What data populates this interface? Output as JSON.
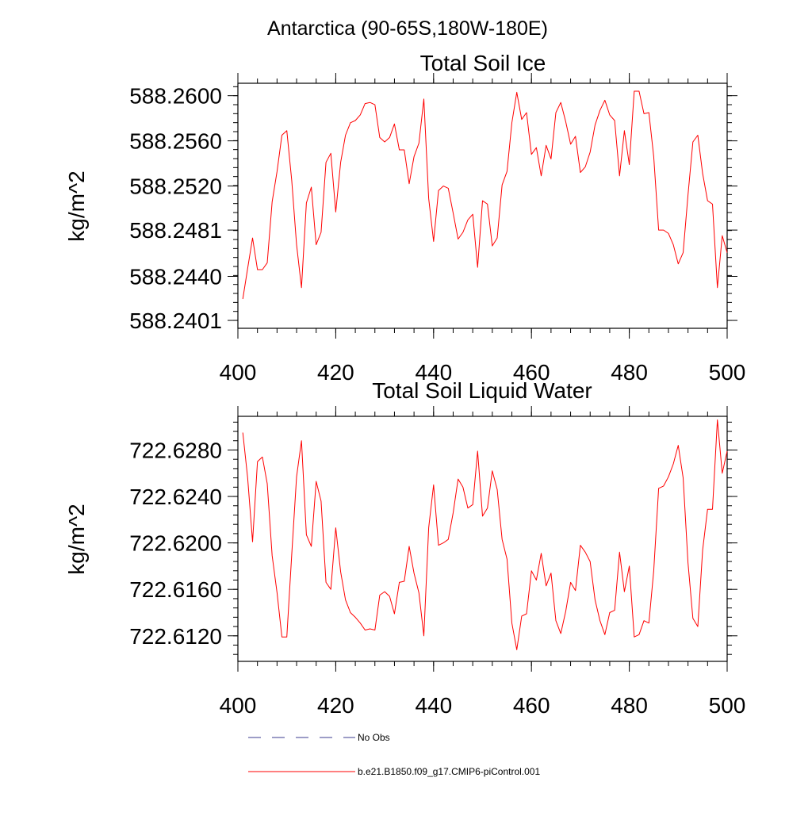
{
  "header": {
    "region_title": "Antarctica (90-65S,180W-180E)"
  },
  "legend": {
    "obs_label": "No Obs",
    "model_label": "b.e21.B1850.f09_g17.CMIP6-piControl.001",
    "obs_color": "#3b3b8f",
    "model_color": "#ff0000"
  },
  "chart_data": [
    {
      "type": "line",
      "title": "Total Soil Ice",
      "xlabel": "",
      "ylabel": "kg/m^2",
      "xlim": [
        400,
        500
      ],
      "ylim": [
        588.2394,
        588.2611
      ],
      "xticks": [
        400,
        420,
        440,
        460,
        480,
        500
      ],
      "xtick_labels": [
        "400",
        "420",
        "440",
        "460",
        "480",
        "500"
      ],
      "yticks": [
        588.2401,
        588.244,
        588.2481,
        588.252,
        588.256,
        588.26
      ],
      "ytick_labels": [
        "588.2401",
        "588.2440",
        "588.2481",
        "588.2520",
        "588.2560",
        "588.2600"
      ],
      "grid": false,
      "series": [
        {
          "name": "b.e21.B1850.f09_g17.CMIP6-piControl.001",
          "color": "#ff0000",
          "x": [
            401,
            402,
            403,
            404,
            405,
            406,
            407,
            408,
            409,
            410,
            411,
            412,
            413,
            414,
            415,
            416,
            417,
            418,
            419,
            420,
            421,
            422,
            423,
            424,
            425,
            426,
            427,
            428,
            429,
            430,
            431,
            432,
            433,
            434,
            435,
            436,
            437,
            438,
            439,
            440,
            441,
            442,
            443,
            444,
            445,
            446,
            447,
            448,
            449,
            450,
            451,
            452,
            453,
            454,
            455,
            456,
            457,
            458,
            459,
            460,
            461,
            462,
            463,
            464,
            465,
            466,
            467,
            468,
            469,
            470,
            471,
            472,
            473,
            474,
            475,
            476,
            477,
            478,
            479,
            480,
            481,
            482,
            483,
            484,
            485,
            486,
            487,
            488,
            489,
            490,
            491,
            492,
            493,
            494,
            495,
            496,
            497,
            498,
            499,
            500
          ],
          "values": [
            588.242,
            588.2447,
            588.2474,
            588.2446,
            588.2446,
            588.2452,
            588.2506,
            588.2533,
            588.2565,
            588.2569,
            588.2525,
            588.2468,
            588.243,
            588.2505,
            588.2519,
            588.2468,
            588.2479,
            588.2541,
            588.2549,
            588.2497,
            588.2541,
            588.2565,
            588.2576,
            588.2578,
            588.2583,
            588.2593,
            588.2594,
            588.2592,
            588.2563,
            588.2559,
            588.2563,
            588.2575,
            588.2552,
            588.2552,
            588.2522,
            588.2546,
            588.2558,
            588.2597,
            588.2509,
            588.2471,
            588.2516,
            588.252,
            588.2518,
            588.2496,
            588.2473,
            588.2479,
            588.249,
            588.2495,
            588.2448,
            588.2507,
            588.2504,
            588.2467,
            588.2474,
            588.2521,
            588.2533,
            588.2576,
            588.2603,
            588.2579,
            588.2585,
            588.2548,
            588.2554,
            588.2529,
            588.2556,
            588.2544,
            588.2585,
            588.2594,
            588.2577,
            588.2557,
            588.2564,
            588.2532,
            588.2537,
            588.255,
            588.2574,
            588.2587,
            588.2596,
            588.2583,
            588.2578,
            588.2529,
            588.2569,
            588.2539,
            588.2604,
            588.2604,
            588.2584,
            588.2585,
            588.2546,
            588.2481,
            588.2481,
            588.2478,
            588.2468,
            588.2451,
            588.2461,
            588.2512,
            588.2559,
            588.2565,
            588.2531,
            588.2507,
            588.2504,
            588.243,
            588.2476,
            588.2461
          ]
        }
      ]
    },
    {
      "type": "line",
      "title": "Total Soil Liquid Water",
      "xlabel": "",
      "ylabel": "kg/m^2",
      "xlim": [
        400,
        500
      ],
      "ylim": [
        722.6098,
        722.6309
      ],
      "xticks": [
        400,
        420,
        440,
        460,
        480,
        500
      ],
      "xtick_labels": [
        "400",
        "420",
        "440",
        "460",
        "480",
        "500"
      ],
      "yticks": [
        722.612,
        722.616,
        722.62,
        722.624,
        722.628
      ],
      "ytick_labels": [
        "722.6120",
        "722.6160",
        "722.6200",
        "722.6240",
        "722.6280"
      ],
      "grid": false,
      "series": [
        {
          "name": "b.e21.B1850.f09_g17.CMIP6-piControl.001",
          "color": "#ff0000",
          "x": [
            401,
            402,
            403,
            404,
            405,
            406,
            407,
            408,
            409,
            410,
            411,
            412,
            413,
            414,
            415,
            416,
            417,
            418,
            419,
            420,
            421,
            422,
            423,
            424,
            425,
            426,
            427,
            428,
            429,
            430,
            431,
            432,
            433,
            434,
            435,
            436,
            437,
            438,
            439,
            440,
            441,
            442,
            443,
            444,
            445,
            446,
            447,
            448,
            449,
            450,
            451,
            452,
            453,
            454,
            455,
            456,
            457,
            458,
            459,
            460,
            461,
            462,
            463,
            464,
            465,
            466,
            467,
            468,
            469,
            470,
            471,
            472,
            473,
            474,
            475,
            476,
            477,
            478,
            479,
            480,
            481,
            482,
            483,
            484,
            485,
            486,
            487,
            488,
            489,
            490,
            491,
            492,
            493,
            494,
            495,
            496,
            497,
            498,
            499,
            500
          ],
          "values": [
            722.6295,
            722.6256,
            722.6201,
            722.627,
            722.6274,
            722.6251,
            722.6189,
            722.6157,
            722.6119,
            722.6119,
            722.619,
            722.6257,
            722.6288,
            722.6207,
            722.6197,
            722.6253,
            722.6236,
            722.6166,
            722.616,
            722.6213,
            722.6175,
            722.6151,
            722.614,
            722.6136,
            722.6131,
            722.6125,
            722.6126,
            722.6125,
            722.6155,
            722.6158,
            722.6154,
            722.6139,
            722.6166,
            722.6167,
            722.6197,
            722.6174,
            722.6157,
            722.612,
            722.6213,
            722.625,
            722.6198,
            722.62,
            722.6203,
            722.6226,
            722.6255,
            722.6248,
            722.623,
            722.6233,
            722.6279,
            722.6223,
            722.623,
            722.6262,
            722.6246,
            722.6203,
            722.6186,
            722.6131,
            722.6108,
            722.6137,
            722.6139,
            722.6176,
            722.6168,
            722.6191,
            722.6163,
            722.6174,
            722.6133,
            722.6122,
            722.6141,
            722.6166,
            722.6159,
            722.6198,
            722.6192,
            722.6184,
            722.6151,
            722.6133,
            722.6121,
            722.614,
            722.6142,
            722.6192,
            722.6158,
            722.618,
            722.6119,
            722.6121,
            722.6133,
            722.6131,
            722.6176,
            722.6247,
            722.6249,
            722.6257,
            722.6268,
            722.6284,
            722.6256,
            722.6183,
            722.6135,
            722.6128,
            722.6194,
            722.6229,
            722.6229,
            722.6306,
            722.626,
            722.6279
          ]
        }
      ]
    }
  ]
}
